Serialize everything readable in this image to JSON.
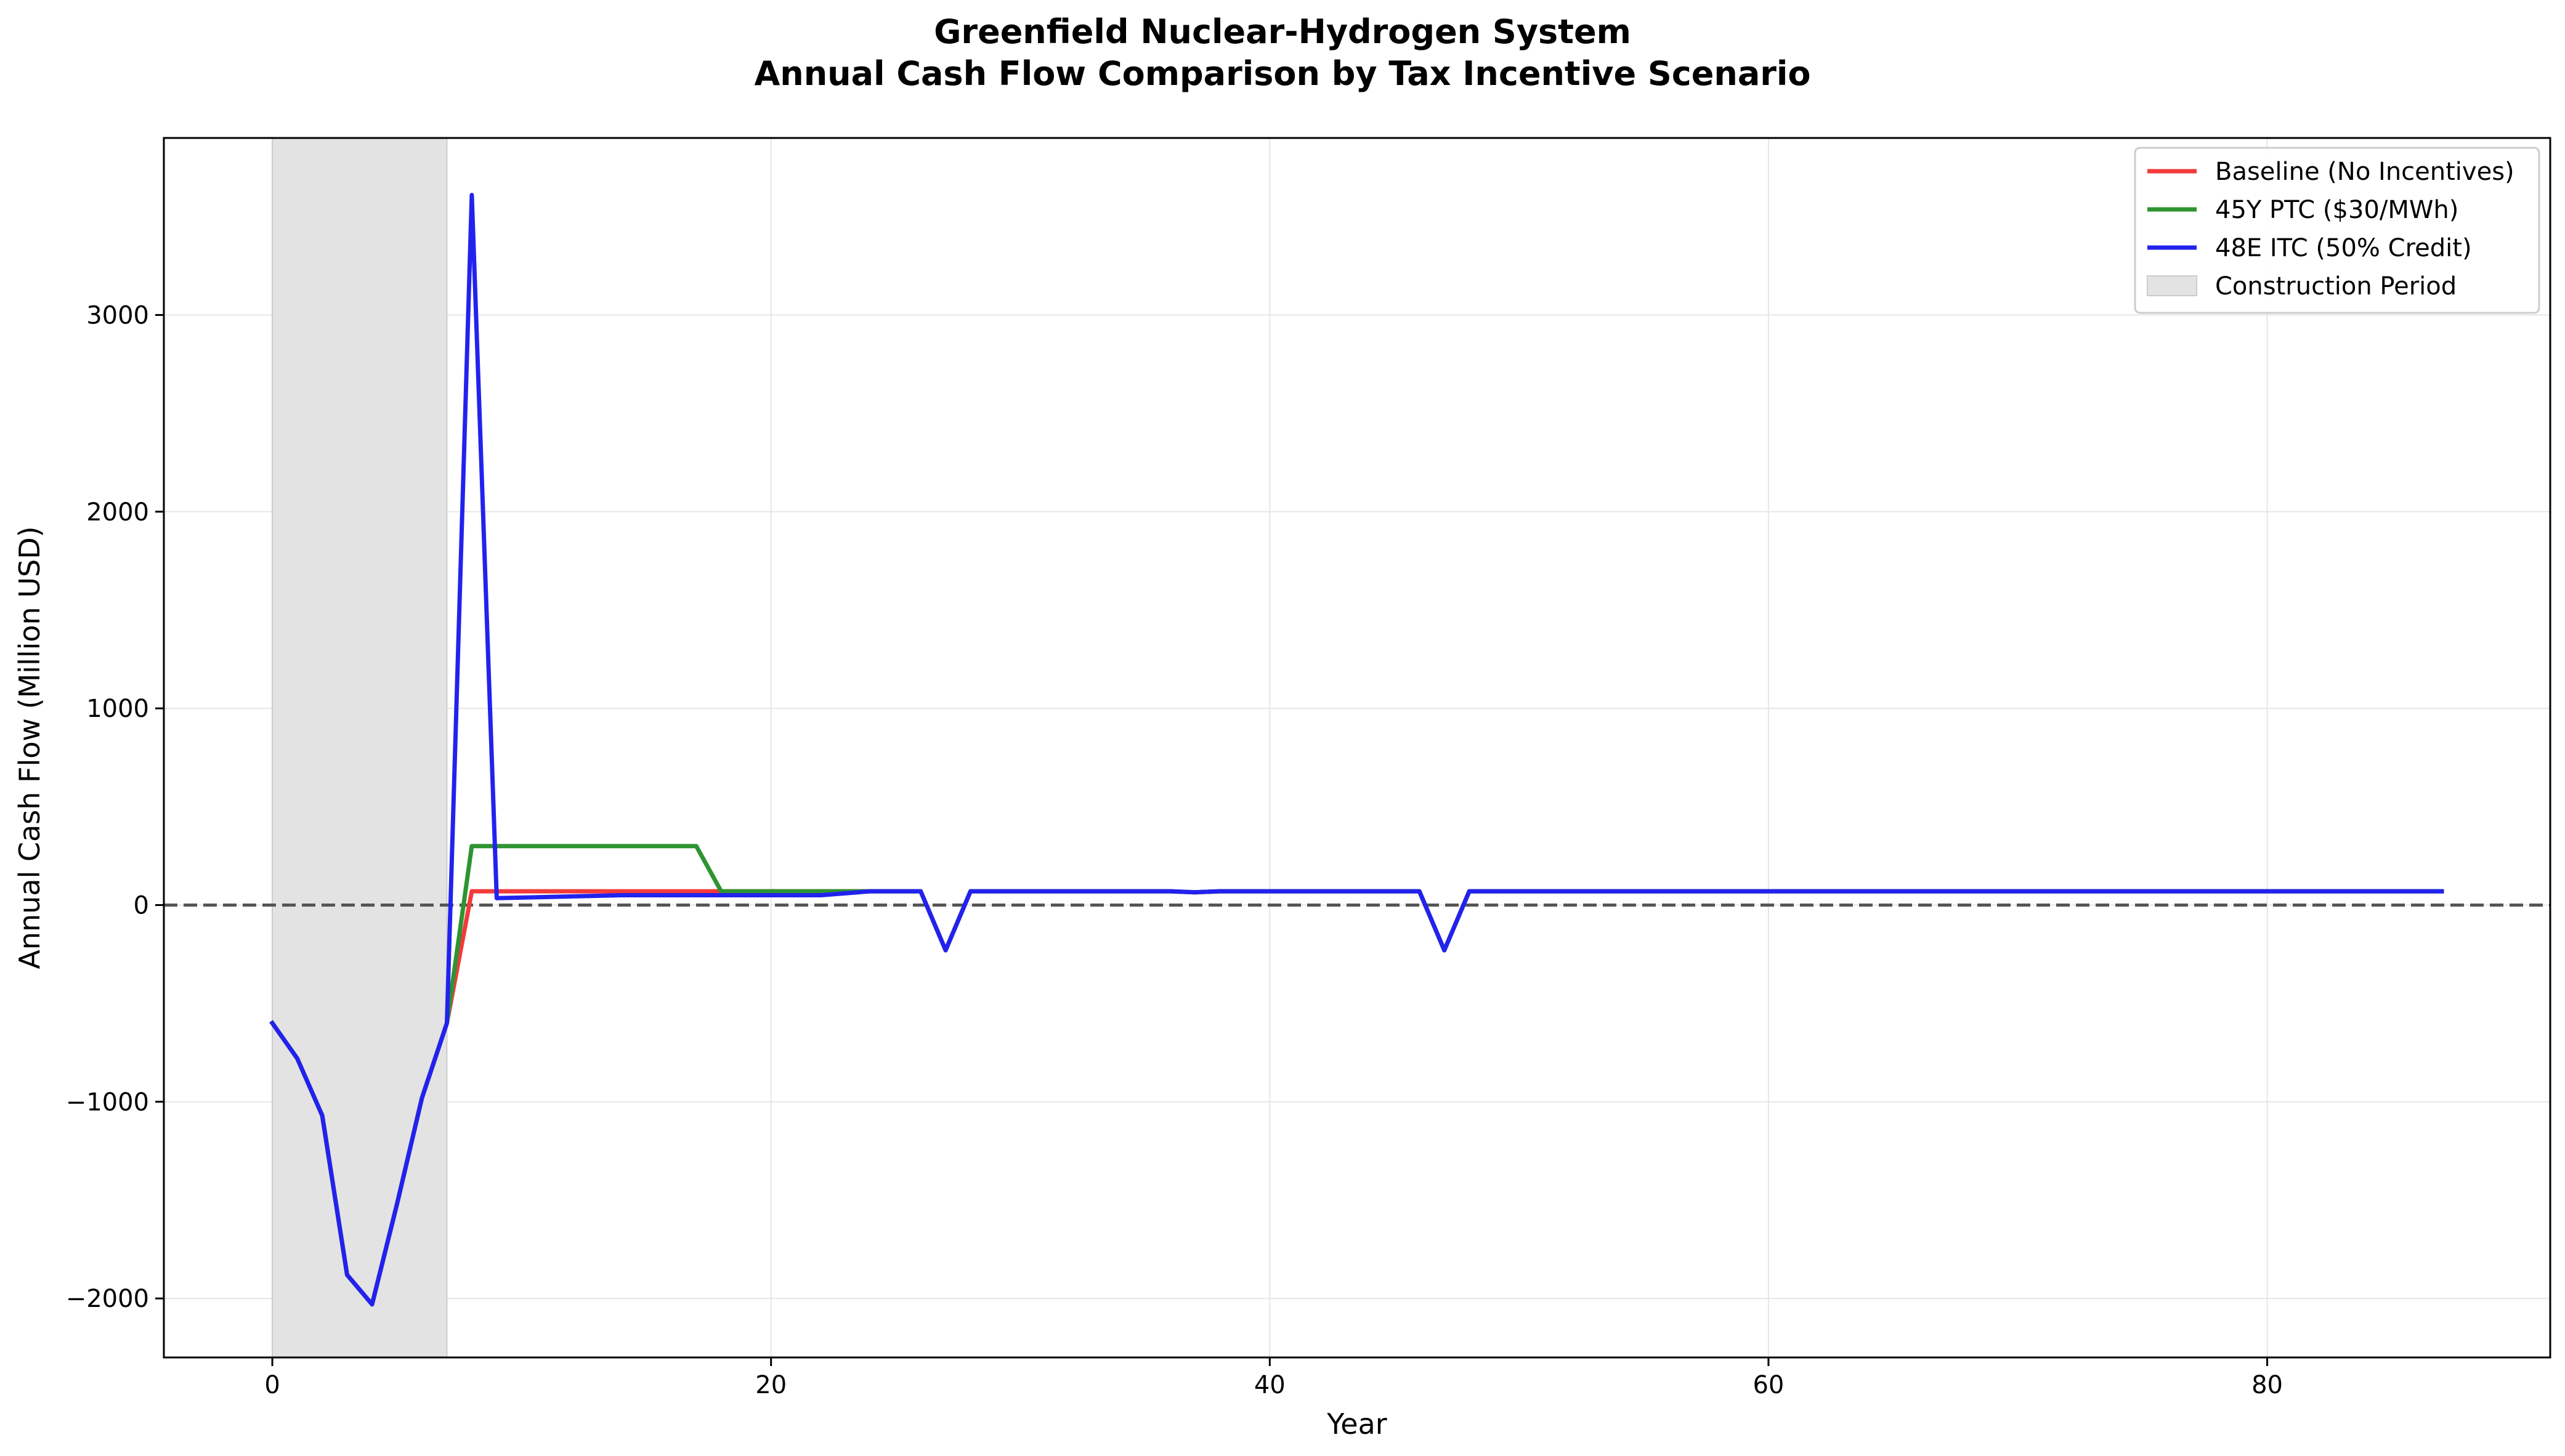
{
  "chart_data": {
    "type": "line",
    "title": "Greenfield Nuclear-Hydrogen System",
    "subtitle": "Annual Cash Flow Comparison by Tax Incentive Scenario",
    "xlabel": "Year",
    "ylabel": "Annual Cash Flow (Million USD)",
    "xlim": [
      -4.35,
      91.35
    ],
    "ylim": [
      -2300,
      3900
    ],
    "xticks": [
      0,
      20,
      40,
      60,
      80
    ],
    "yticks": [
      -2000,
      -1000,
      0,
      1000,
      2000,
      3000
    ],
    "xtick_labels": [
      "0",
      "20",
      "40",
      "60",
      "80"
    ],
    "ytick_labels": [
      "−2000",
      "−1000",
      "0",
      "1000",
      "2000",
      "3000"
    ],
    "grid": true,
    "legend_position": "top-right",
    "zero_line": {
      "y": 0,
      "style": "dashed",
      "color": "#555555"
    },
    "construction_period": {
      "label": "Construction Period",
      "start": 0,
      "end": 7,
      "color": "#e3e3e3"
    },
    "series": [
      {
        "name": "Baseline (No Incentives)",
        "color": "#f23a3a",
        "x": [
          0,
          1,
          2,
          3,
          4,
          5,
          6,
          7,
          8,
          26,
          27,
          28,
          36,
          37,
          38,
          46,
          47,
          48,
          87
        ],
        "values": [
          -600,
          -780,
          -1070,
          -1880,
          -2030,
          -1520,
          -980,
          -600,
          70,
          70,
          -230,
          70,
          70,
          65,
          70,
          70,
          -230,
          70,
          70
        ]
      },
      {
        "name": "45Y PTC ($30/MWh)",
        "color": "#2e9431",
        "x": [
          0,
          1,
          2,
          3,
          4,
          5,
          6,
          7,
          8,
          17,
          18,
          26,
          27,
          28,
          36,
          37,
          38,
          46,
          47,
          48,
          87
        ],
        "values": [
          -600,
          -780,
          -1070,
          -1880,
          -2030,
          -1520,
          -980,
          -600,
          300,
          300,
          70,
          70,
          -230,
          70,
          70,
          65,
          70,
          70,
          -230,
          70,
          70
        ]
      },
      {
        "name": "48E ITC (50% Credit)",
        "color": "#2222ee",
        "x": [
          0,
          1,
          2,
          3,
          4,
          5,
          6,
          7,
          8,
          9,
          14,
          22,
          24,
          26,
          27,
          28,
          36,
          37,
          38,
          46,
          47,
          48,
          87
        ],
        "values": [
          -600,
          -780,
          -1070,
          -1880,
          -2030,
          -1520,
          -980,
          -600,
          3610,
          35,
          50,
          50,
          70,
          70,
          -230,
          70,
          70,
          65,
          70,
          70,
          -230,
          70,
          70
        ]
      }
    ]
  }
}
